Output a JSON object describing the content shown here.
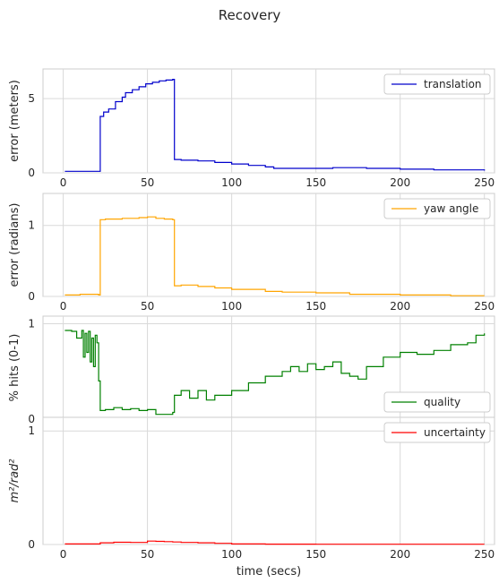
{
  "title": "Recovery",
  "xlabel": "time (secs)",
  "chart_data": [
    {
      "type": "line",
      "ylabel": "error (meters)",
      "xlim": [
        -12,
        256
      ],
      "ylim": [
        0,
        7
      ],
      "yticks": [
        0,
        5
      ],
      "xticks": [
        0,
        50,
        100,
        150,
        200,
        250
      ],
      "grid": true,
      "legend_position": "top-right",
      "series": [
        {
          "name": "translation",
          "color": "#0000cc",
          "x": [
            1,
            21,
            22,
            24,
            27,
            31,
            35,
            37,
            41,
            45,
            49,
            53,
            57,
            61,
            65,
            66,
            70,
            80,
            90,
            100,
            110,
            120,
            125,
            140,
            160,
            180,
            200,
            220,
            240,
            250
          ],
          "y": [
            0.1,
            0.1,
            3.8,
            4.1,
            4.3,
            4.8,
            5.1,
            5.4,
            5.6,
            5.8,
            6.0,
            6.1,
            6.2,
            6.25,
            6.3,
            0.9,
            0.85,
            0.8,
            0.7,
            0.6,
            0.5,
            0.4,
            0.3,
            0.3,
            0.35,
            0.3,
            0.25,
            0.2,
            0.2,
            0.15
          ]
        }
      ]
    },
    {
      "type": "line",
      "ylabel": "error (radians)",
      "xlim": [
        -12,
        256
      ],
      "ylim": [
        0,
        1.45
      ],
      "yticks": [
        0,
        1
      ],
      "xticks": [
        0,
        50,
        100,
        150,
        200,
        250
      ],
      "grid": true,
      "legend_position": "top-right",
      "series": [
        {
          "name": "yaw angle",
          "color": "#ffa500",
          "x": [
            1,
            10,
            21,
            22,
            25,
            35,
            45,
            50,
            55,
            60,
            65,
            66,
            70,
            80,
            90,
            100,
            120,
            130,
            150,
            170,
            200,
            230,
            250
          ],
          "y": [
            0.02,
            0.03,
            0.02,
            1.08,
            1.09,
            1.1,
            1.11,
            1.12,
            1.1,
            1.09,
            1.08,
            0.15,
            0.16,
            0.14,
            0.12,
            0.1,
            0.07,
            0.06,
            0.05,
            0.03,
            0.02,
            0.01,
            0.01
          ]
        }
      ]
    },
    {
      "type": "line",
      "ylabel": "% hits (0-1)",
      "xlim": [
        -12,
        256
      ],
      "ylim": [
        0,
        1.08
      ],
      "yticks": [
        0,
        1
      ],
      "xticks": [
        0,
        50,
        100,
        150,
        200,
        250
      ],
      "grid": true,
      "legend_position": "bottom-right",
      "series": [
        {
          "name": "quality",
          "color": "#008000",
          "x": [
            1,
            5,
            8,
            11,
            12,
            13,
            14,
            15,
            16,
            17,
            18,
            19,
            20,
            21,
            22,
            25,
            30,
            35,
            40,
            45,
            50,
            55,
            60,
            65,
            66,
            70,
            75,
            80,
            85,
            90,
            100,
            110,
            120,
            130,
            135,
            140,
            145,
            150,
            155,
            160,
            165,
            170,
            175,
            180,
            190,
            200,
            210,
            220,
            230,
            240,
            245,
            250
          ],
          "y": [
            0.93,
            0.92,
            0.85,
            0.93,
            0.65,
            0.9,
            0.7,
            0.92,
            0.6,
            0.85,
            0.55,
            0.88,
            0.8,
            0.4,
            0.09,
            0.1,
            0.12,
            0.1,
            0.11,
            0.09,
            0.1,
            0.05,
            0.05,
            0.07,
            0.25,
            0.3,
            0.22,
            0.3,
            0.2,
            0.25,
            0.3,
            0.38,
            0.45,
            0.5,
            0.55,
            0.5,
            0.58,
            0.52,
            0.55,
            0.6,
            0.48,
            0.45,
            0.42,
            0.55,
            0.65,
            0.7,
            0.68,
            0.72,
            0.78,
            0.8,
            0.88,
            0.9
          ]
        }
      ]
    },
    {
      "type": "line",
      "ylabel": "m²/rad²",
      "xlim": [
        -12,
        256
      ],
      "ylim": [
        0,
        1.12
      ],
      "yticks": [
        0,
        1
      ],
      "xticks": [
        0,
        50,
        100,
        150,
        200,
        250
      ],
      "grid": true,
      "legend_position": "top-right",
      "series": [
        {
          "name": "uncertainty",
          "color": "#ff0000",
          "x": [
            1,
            20,
            22,
            30,
            40,
            50,
            55,
            60,
            65,
            70,
            80,
            90,
            100,
            120,
            150,
            200,
            250
          ],
          "y": [
            0.005,
            0.005,
            0.015,
            0.02,
            0.018,
            0.03,
            0.028,
            0.025,
            0.022,
            0.018,
            0.015,
            0.01,
            0.005,
            0.003,
            0.002,
            0.002,
            0.002
          ]
        }
      ]
    }
  ]
}
